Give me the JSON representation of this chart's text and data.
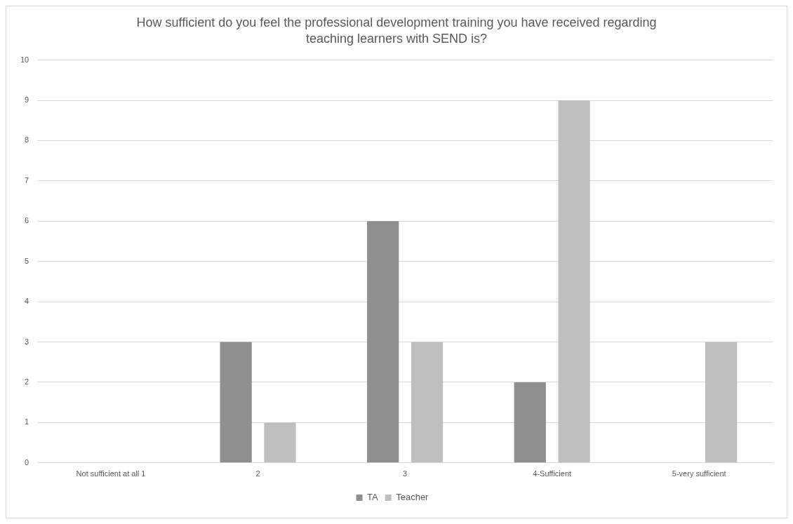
{
  "chart_data": {
    "type": "bar",
    "title": "How sufficient do you feel the professional development training you have received regarding teaching learners with SEND is?",
    "categories": [
      "Not sufficient at all 1",
      "2",
      "3",
      "4-Sufficient",
      "5-very sufficient"
    ],
    "series": [
      {
        "name": "TA",
        "color": "#8f8f8f",
        "values": [
          0,
          3,
          6,
          2,
          0
        ]
      },
      {
        "name": "Teacher",
        "color": "#bfbfbf",
        "values": [
          0,
          1,
          3,
          9,
          3
        ]
      }
    ],
    "ylim": [
      0,
      10
    ],
    "yticks": [
      0,
      1,
      2,
      3,
      4,
      5,
      6,
      7,
      8,
      9,
      10
    ],
    "grid": "y",
    "legend": "bottom"
  }
}
